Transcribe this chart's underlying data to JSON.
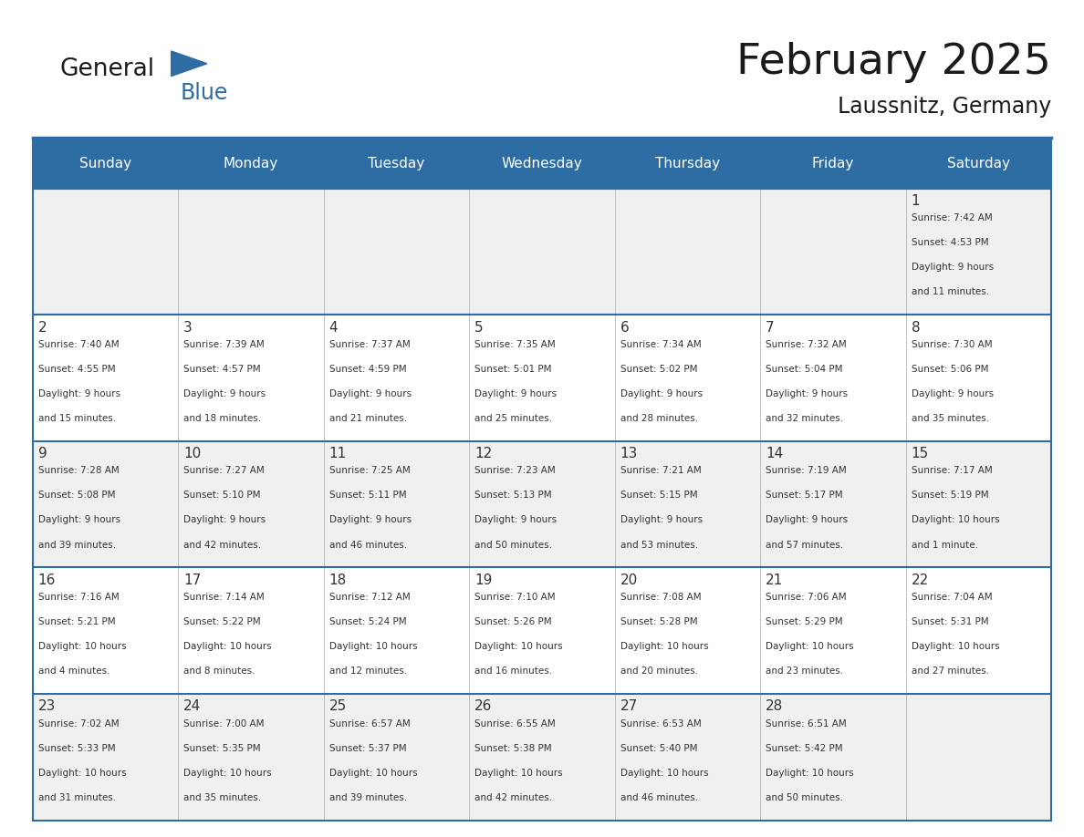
{
  "title": "February 2025",
  "subtitle": "Laussnitz, Germany",
  "header_bg": "#2E6DA4",
  "header_text_color": "#FFFFFF",
  "cell_bg_light": "#F0F0F0",
  "cell_bg_white": "#FFFFFF",
  "border_color": "#2E6DA4",
  "divider_color": "#AAAAAA",
  "text_color": "#333333",
  "days_of_week": [
    "Sunday",
    "Monday",
    "Tuesday",
    "Wednesday",
    "Thursday",
    "Friday",
    "Saturday"
  ],
  "logo_text1": "General",
  "logo_text2": "Blue",
  "logo_color1": "#1a1a1a",
  "logo_color2": "#2E6DA4",
  "logo_triangle_color": "#2E6DA4",
  "weeks": [
    [
      {
        "day": 0,
        "text": ""
      },
      {
        "day": 0,
        "text": ""
      },
      {
        "day": 0,
        "text": ""
      },
      {
        "day": 0,
        "text": ""
      },
      {
        "day": 0,
        "text": ""
      },
      {
        "day": 0,
        "text": ""
      },
      {
        "day": 1,
        "text": "Sunrise: 7:42 AM\nSunset: 4:53 PM\nDaylight: 9 hours\nand 11 minutes."
      }
    ],
    [
      {
        "day": 2,
        "text": "Sunrise: 7:40 AM\nSunset: 4:55 PM\nDaylight: 9 hours\nand 15 minutes."
      },
      {
        "day": 3,
        "text": "Sunrise: 7:39 AM\nSunset: 4:57 PM\nDaylight: 9 hours\nand 18 minutes."
      },
      {
        "day": 4,
        "text": "Sunrise: 7:37 AM\nSunset: 4:59 PM\nDaylight: 9 hours\nand 21 minutes."
      },
      {
        "day": 5,
        "text": "Sunrise: 7:35 AM\nSunset: 5:01 PM\nDaylight: 9 hours\nand 25 minutes."
      },
      {
        "day": 6,
        "text": "Sunrise: 7:34 AM\nSunset: 5:02 PM\nDaylight: 9 hours\nand 28 minutes."
      },
      {
        "day": 7,
        "text": "Sunrise: 7:32 AM\nSunset: 5:04 PM\nDaylight: 9 hours\nand 32 minutes."
      },
      {
        "day": 8,
        "text": "Sunrise: 7:30 AM\nSunset: 5:06 PM\nDaylight: 9 hours\nand 35 minutes."
      }
    ],
    [
      {
        "day": 9,
        "text": "Sunrise: 7:28 AM\nSunset: 5:08 PM\nDaylight: 9 hours\nand 39 minutes."
      },
      {
        "day": 10,
        "text": "Sunrise: 7:27 AM\nSunset: 5:10 PM\nDaylight: 9 hours\nand 42 minutes."
      },
      {
        "day": 11,
        "text": "Sunrise: 7:25 AM\nSunset: 5:11 PM\nDaylight: 9 hours\nand 46 minutes."
      },
      {
        "day": 12,
        "text": "Sunrise: 7:23 AM\nSunset: 5:13 PM\nDaylight: 9 hours\nand 50 minutes."
      },
      {
        "day": 13,
        "text": "Sunrise: 7:21 AM\nSunset: 5:15 PM\nDaylight: 9 hours\nand 53 minutes."
      },
      {
        "day": 14,
        "text": "Sunrise: 7:19 AM\nSunset: 5:17 PM\nDaylight: 9 hours\nand 57 minutes."
      },
      {
        "day": 15,
        "text": "Sunrise: 7:17 AM\nSunset: 5:19 PM\nDaylight: 10 hours\nand 1 minute."
      }
    ],
    [
      {
        "day": 16,
        "text": "Sunrise: 7:16 AM\nSunset: 5:21 PM\nDaylight: 10 hours\nand 4 minutes."
      },
      {
        "day": 17,
        "text": "Sunrise: 7:14 AM\nSunset: 5:22 PM\nDaylight: 10 hours\nand 8 minutes."
      },
      {
        "day": 18,
        "text": "Sunrise: 7:12 AM\nSunset: 5:24 PM\nDaylight: 10 hours\nand 12 minutes."
      },
      {
        "day": 19,
        "text": "Sunrise: 7:10 AM\nSunset: 5:26 PM\nDaylight: 10 hours\nand 16 minutes."
      },
      {
        "day": 20,
        "text": "Sunrise: 7:08 AM\nSunset: 5:28 PM\nDaylight: 10 hours\nand 20 minutes."
      },
      {
        "day": 21,
        "text": "Sunrise: 7:06 AM\nSunset: 5:29 PM\nDaylight: 10 hours\nand 23 minutes."
      },
      {
        "day": 22,
        "text": "Sunrise: 7:04 AM\nSunset: 5:31 PM\nDaylight: 10 hours\nand 27 minutes."
      }
    ],
    [
      {
        "day": 23,
        "text": "Sunrise: 7:02 AM\nSunset: 5:33 PM\nDaylight: 10 hours\nand 31 minutes."
      },
      {
        "day": 24,
        "text": "Sunrise: 7:00 AM\nSunset: 5:35 PM\nDaylight: 10 hours\nand 35 minutes."
      },
      {
        "day": 25,
        "text": "Sunrise: 6:57 AM\nSunset: 5:37 PM\nDaylight: 10 hours\nand 39 minutes."
      },
      {
        "day": 26,
        "text": "Sunrise: 6:55 AM\nSunset: 5:38 PM\nDaylight: 10 hours\nand 42 minutes."
      },
      {
        "day": 27,
        "text": "Sunrise: 6:53 AM\nSunset: 5:40 PM\nDaylight: 10 hours\nand 46 minutes."
      },
      {
        "day": 28,
        "text": "Sunrise: 6:51 AM\nSunset: 5:42 PM\nDaylight: 10 hours\nand 50 minutes."
      },
      {
        "day": 0,
        "text": ""
      }
    ]
  ]
}
